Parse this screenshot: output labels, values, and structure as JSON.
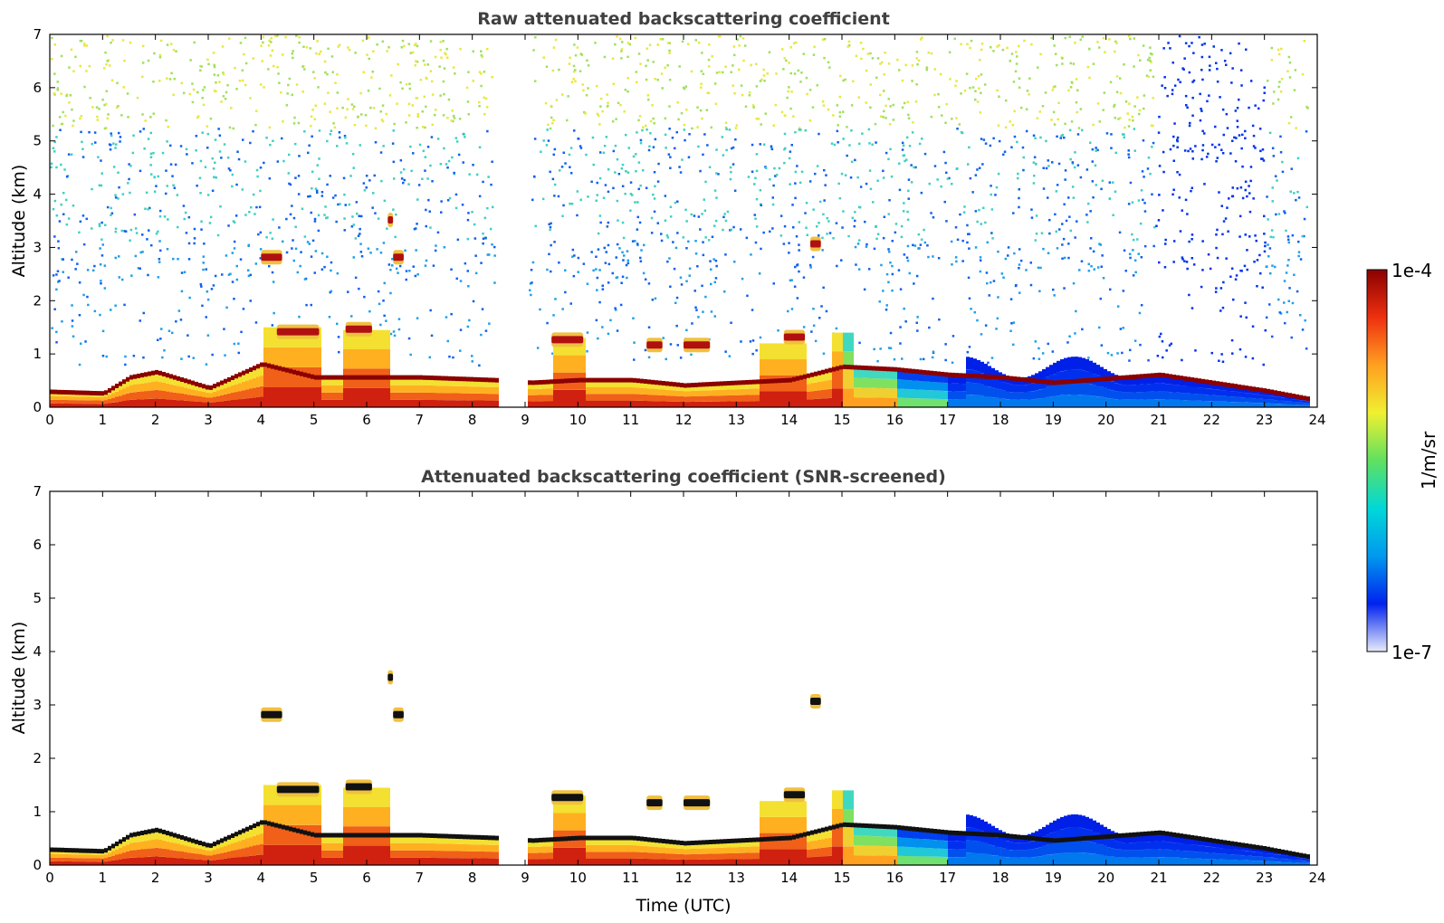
{
  "figure": {
    "colorbar": {
      "max_label": "1e-4",
      "min_label": "1e-7",
      "unit_label": "1/m/sr",
      "scale": "log",
      "range": [
        1e-07,
        0.0001
      ],
      "colormap": [
        "#e8ecfa",
        "#0022ee",
        "#0099ee",
        "#00d8d8",
        "#60e060",
        "#f0f030",
        "#ffa020",
        "#ee3010",
        "#8b0000"
      ]
    }
  },
  "chart_data": [
    {
      "type": "heatmap",
      "title": "Raw attenuated backscattering coefficient",
      "xlabel": "",
      "ylabel": "Altitude (km)",
      "xlim": [
        0,
        24
      ],
      "ylim": [
        0,
        7
      ],
      "xticks": [
        "0",
        "1",
        "2",
        "3",
        "4",
        "5",
        "6",
        "7",
        "8",
        "9",
        "10",
        "11",
        "12",
        "13",
        "14",
        "15",
        "16",
        "17",
        "18",
        "19",
        "20",
        "21",
        "22",
        "23",
        "24"
      ],
      "yticks": [
        "0",
        "1",
        "2",
        "3",
        "4",
        "5",
        "6",
        "7"
      ],
      "data_gaps_utc": [
        [
          8.45,
          9.05
        ]
      ],
      "features": [
        {
          "kind": "boundary layer top",
          "points": [
            [
              0,
              0.28
            ],
            [
              1,
              0.25
            ],
            [
              1.5,
              0.55
            ],
            [
              2,
              0.65
            ],
            [
              3,
              0.35
            ],
            [
              4,
              0.8
            ],
            [
              5,
              0.55
            ],
            [
              7,
              0.55
            ],
            [
              8.4,
              0.5
            ],
            [
              9.1,
              0.45
            ],
            [
              10,
              0.5
            ],
            [
              11,
              0.5
            ],
            [
              12,
              0.4
            ],
            [
              13,
              0.45
            ],
            [
              14,
              0.5
            ],
            [
              15,
              0.75
            ],
            [
              16,
              0.7
            ],
            [
              17,
              0.6
            ],
            [
              18,
              0.55
            ],
            [
              19,
              0.45
            ],
            [
              21,
              0.6
            ],
            [
              22,
              0.45
            ],
            [
              23,
              0.3
            ],
            [
              23.8,
              0.15
            ]
          ]
        },
        {
          "kind": "cloud",
          "x": [
            4.0,
            4.4
          ],
          "altitude": 2.8
        },
        {
          "kind": "cloud",
          "x": [
            4.3,
            5.1
          ],
          "altitude": 1.4
        },
        {
          "kind": "cloud",
          "x": [
            5.6,
            6.1
          ],
          "altitude": 1.45
        },
        {
          "kind": "cloud",
          "x": [
            6.5,
            6.7
          ],
          "altitude": 2.8
        },
        {
          "kind": "cloud",
          "x": [
            6.4,
            6.5
          ],
          "altitude": 3.5
        },
        {
          "kind": "cloud",
          "x": [
            9.5,
            10.1
          ],
          "altitude": 1.25
        },
        {
          "kind": "cloud",
          "x": [
            11.3,
            11.6
          ],
          "altitude": 1.15
        },
        {
          "kind": "cloud",
          "x": [
            12.0,
            12.5
          ],
          "altitude": 1.15
        },
        {
          "kind": "cloud",
          "x": [
            14.4,
            14.6
          ],
          "altitude": 3.05
        },
        {
          "kind": "cloud",
          "x": [
            13.9,
            14.3
          ],
          "altitude": 1.3
        }
      ]
    },
    {
      "type": "heatmap",
      "title": "Attenuated backscattering coefficient (SNR-screened)",
      "xlabel": "Time (UTC)",
      "ylabel": "Altitude (km)",
      "xlim": [
        0,
        24
      ],
      "ylim": [
        0,
        7
      ],
      "xticks": [
        "0",
        "1",
        "2",
        "3",
        "4",
        "5",
        "6",
        "7",
        "8",
        "9",
        "10",
        "11",
        "12",
        "13",
        "14",
        "15",
        "16",
        "17",
        "18",
        "19",
        "20",
        "21",
        "22",
        "23",
        "24"
      ],
      "yticks": [
        "0",
        "1",
        "2",
        "3",
        "4",
        "5",
        "6",
        "7"
      ],
      "data_gaps_utc": [
        [
          8.45,
          9.05
        ]
      ]
    }
  ]
}
